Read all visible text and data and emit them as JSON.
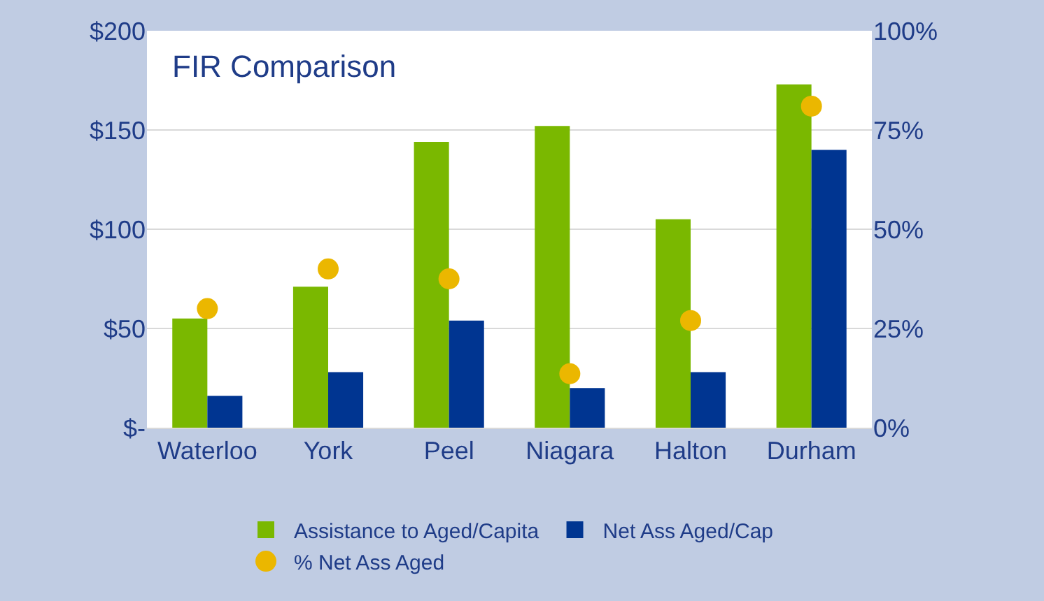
{
  "chart_data": {
    "type": "bar",
    "title": "FIR Comparison",
    "categories": [
      "Waterloo",
      "York",
      "Peel",
      "Niagara",
      "Halton",
      "Durham"
    ],
    "series": [
      {
        "name": "Assistance to Aged/Capita",
        "color": "#7ab800",
        "values": [
          55,
          71,
          144,
          152,
          105,
          173
        ]
      },
      {
        "name": "Net Ass Aged/Cap",
        "color": "#003591",
        "values": [
          16,
          28,
          54,
          20,
          28,
          140
        ]
      },
      {
        "name": "% Net Ass Aged",
        "color": "#ebb700",
        "type": "scatter",
        "axis": "y2",
        "marker": "circle",
        "values": [
          30,
          40,
          37.5,
          13.6,
          27,
          81
        ]
      }
    ],
    "ylim": [
      0,
      200
    ],
    "yticks": [
      {
        "value": 0,
        "label": "$-"
      },
      {
        "value": 50,
        "label": "$50"
      },
      {
        "value": 100,
        "label": "$100"
      },
      {
        "value": 150,
        "label": "$150"
      },
      {
        "value": 200,
        "label": "$200"
      }
    ],
    "y2lim": [
      0,
      100
    ],
    "y2ticks": [
      {
        "value": 0,
        "label": "0%"
      },
      {
        "value": 25,
        "label": "25%"
      },
      {
        "value": 50,
        "label": "50%"
      },
      {
        "value": 75,
        "label": "75%"
      },
      {
        "value": 100,
        "label": "100%"
      }
    ],
    "grid": "y",
    "legend": "bottom"
  }
}
